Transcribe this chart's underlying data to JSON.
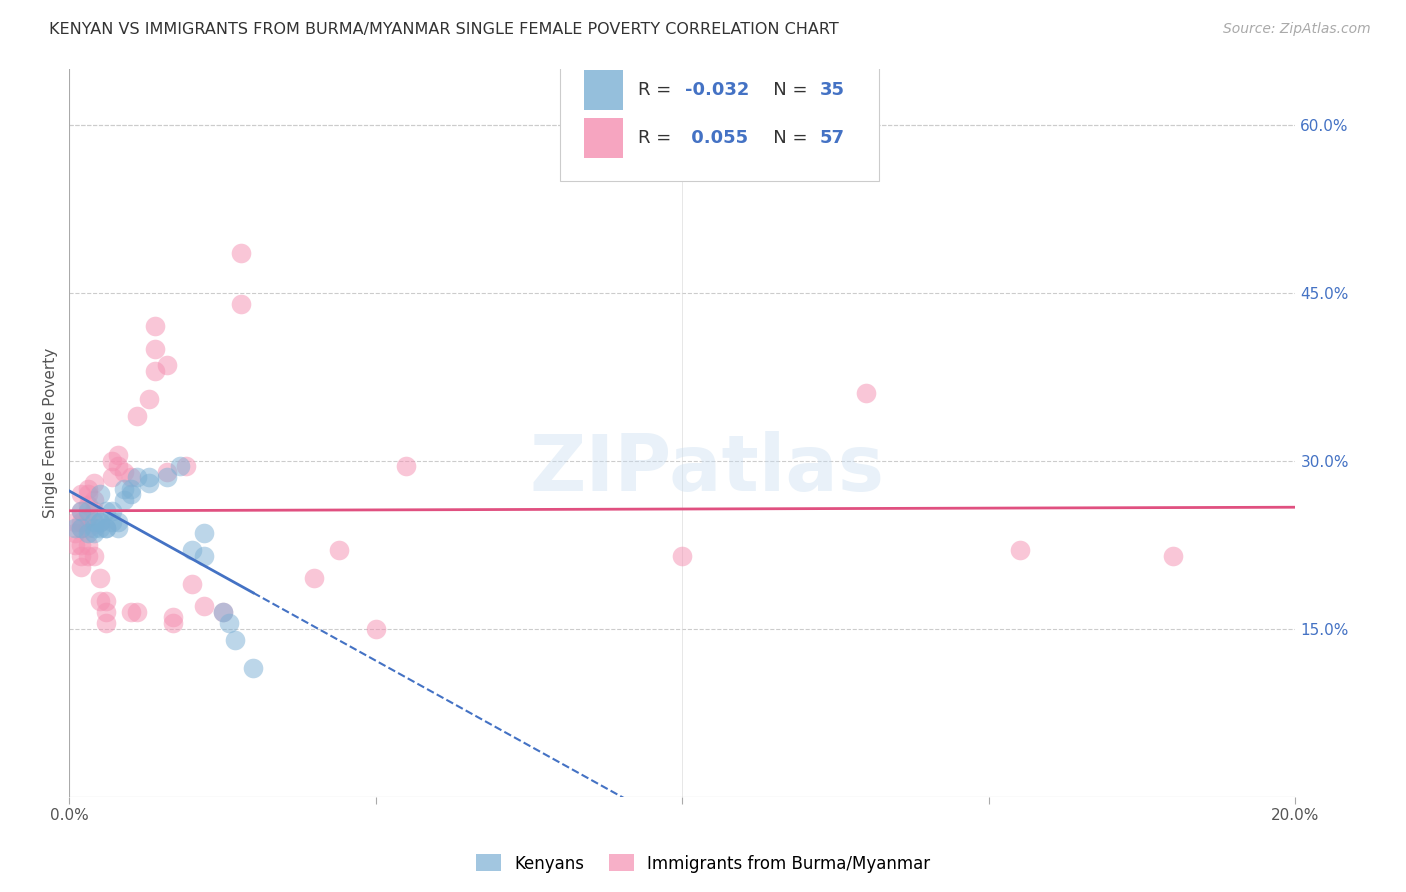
{
  "title": "KENYAN VS IMMIGRANTS FROM BURMA/MYANMAR SINGLE FEMALE POVERTY CORRELATION CHART",
  "source": "Source: ZipAtlas.com",
  "ylabel": "Single Female Poverty",
  "xlim": [
    0.0,
    0.2
  ],
  "ylim": [
    0.0,
    0.65
  ],
  "kenyan_color": "#7bafd4",
  "burma_color": "#f48fb1",
  "kenyan_line_color": "#4472c4",
  "burma_line_color": "#e05080",
  "background_color": "#ffffff",
  "grid_color": "#cccccc",
  "title_color": "#333333",
  "axis_label_color": "#555555",
  "right_tick_color": "#4472c4",
  "watermark": "ZIPatlas",
  "kenyan_points": [
    [
      0.001,
      0.24
    ],
    [
      0.002,
      0.255
    ],
    [
      0.002,
      0.24
    ],
    [
      0.003,
      0.235
    ],
    [
      0.003,
      0.255
    ],
    [
      0.004,
      0.24
    ],
    [
      0.004,
      0.245
    ],
    [
      0.004,
      0.235
    ],
    [
      0.005,
      0.27
    ],
    [
      0.005,
      0.245
    ],
    [
      0.005,
      0.24
    ],
    [
      0.005,
      0.245
    ],
    [
      0.006,
      0.24
    ],
    [
      0.006,
      0.24
    ],
    [
      0.006,
      0.255
    ],
    [
      0.007,
      0.245
    ],
    [
      0.007,
      0.255
    ],
    [
      0.008,
      0.245
    ],
    [
      0.008,
      0.24
    ],
    [
      0.009,
      0.265
    ],
    [
      0.009,
      0.275
    ],
    [
      0.01,
      0.27
    ],
    [
      0.01,
      0.275
    ],
    [
      0.011,
      0.285
    ],
    [
      0.013,
      0.285
    ],
    [
      0.013,
      0.28
    ],
    [
      0.016,
      0.285
    ],
    [
      0.018,
      0.295
    ],
    [
      0.02,
      0.22
    ],
    [
      0.022,
      0.235
    ],
    [
      0.022,
      0.215
    ],
    [
      0.025,
      0.165
    ],
    [
      0.026,
      0.155
    ],
    [
      0.027,
      0.14
    ],
    [
      0.03,
      0.115
    ]
  ],
  "burma_points": [
    [
      0.001,
      0.225
    ],
    [
      0.001,
      0.235
    ],
    [
      0.001,
      0.245
    ],
    [
      0.002,
      0.245
    ],
    [
      0.002,
      0.255
    ],
    [
      0.002,
      0.27
    ],
    [
      0.002,
      0.24
    ],
    [
      0.002,
      0.225
    ],
    [
      0.002,
      0.215
    ],
    [
      0.002,
      0.205
    ],
    [
      0.003,
      0.275
    ],
    [
      0.003,
      0.27
    ],
    [
      0.003,
      0.26
    ],
    [
      0.003,
      0.25
    ],
    [
      0.003,
      0.24
    ],
    [
      0.003,
      0.225
    ],
    [
      0.003,
      0.215
    ],
    [
      0.004,
      0.28
    ],
    [
      0.004,
      0.265
    ],
    [
      0.004,
      0.255
    ],
    [
      0.004,
      0.215
    ],
    [
      0.005,
      0.195
    ],
    [
      0.005,
      0.175
    ],
    [
      0.006,
      0.165
    ],
    [
      0.006,
      0.155
    ],
    [
      0.006,
      0.175
    ],
    [
      0.007,
      0.285
    ],
    [
      0.007,
      0.3
    ],
    [
      0.008,
      0.305
    ],
    [
      0.008,
      0.295
    ],
    [
      0.009,
      0.29
    ],
    [
      0.01,
      0.285
    ],
    [
      0.01,
      0.165
    ],
    [
      0.011,
      0.165
    ],
    [
      0.011,
      0.34
    ],
    [
      0.013,
      0.355
    ],
    [
      0.014,
      0.4
    ],
    [
      0.014,
      0.42
    ],
    [
      0.014,
      0.38
    ],
    [
      0.016,
      0.385
    ],
    [
      0.016,
      0.29
    ],
    [
      0.017,
      0.16
    ],
    [
      0.017,
      0.155
    ],
    [
      0.019,
      0.295
    ],
    [
      0.02,
      0.19
    ],
    [
      0.022,
      0.17
    ],
    [
      0.025,
      0.165
    ],
    [
      0.028,
      0.485
    ],
    [
      0.028,
      0.44
    ],
    [
      0.04,
      0.195
    ],
    [
      0.044,
      0.22
    ],
    [
      0.05,
      0.15
    ],
    [
      0.055,
      0.295
    ],
    [
      0.1,
      0.215
    ],
    [
      0.13,
      0.36
    ],
    [
      0.155,
      0.22
    ],
    [
      0.18,
      0.215
    ]
  ]
}
